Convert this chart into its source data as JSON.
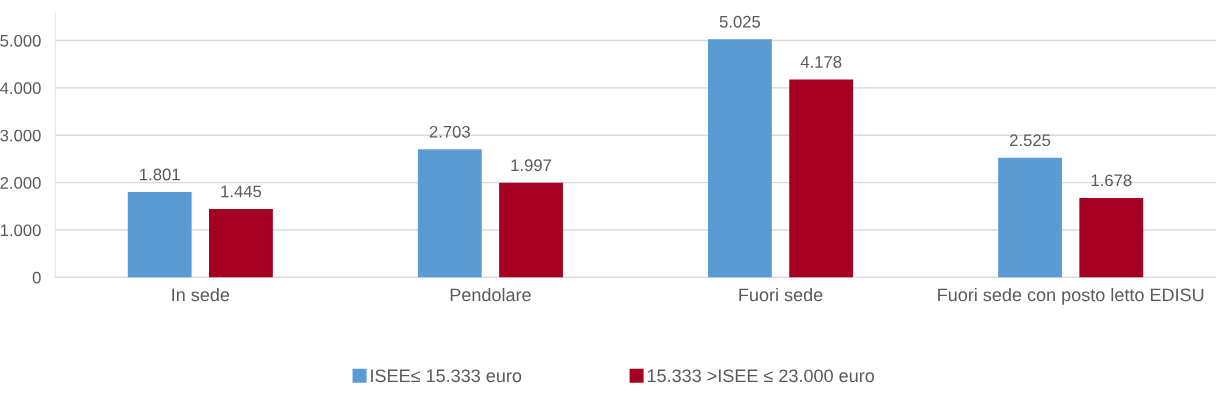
{
  "chart_data": {
    "type": "bar",
    "categories": [
      "In sede",
      "Pendolare",
      "Fuori sede",
      "Fuori sede con posto letto EDISU"
    ],
    "series": [
      {
        "name": "ISEE≤ 15.333 euro",
        "color": "#5b9bd5",
        "values": [
          1801,
          2703,
          5025,
          2525
        ],
        "value_labels": [
          "1.801",
          "2.703",
          "5.025",
          "2.525"
        ]
      },
      {
        "name": "15.333 >ISEE ≤ 23.000 euro",
        "color": "#a50021",
        "values": [
          1445,
          1997,
          4178,
          1678
        ],
        "value_labels": [
          "1.445",
          "1.997",
          "4.178",
          "1.678"
        ]
      }
    ],
    "ylim": [
      0,
      5600
    ],
    "yticks": [
      {
        "value": 0,
        "label": "0"
      },
      {
        "value": 1000,
        "label": "1.000"
      },
      {
        "value": 2000,
        "label": "2.000"
      },
      {
        "value": 3000,
        "label": "3.000"
      },
      {
        "value": 4000,
        "label": "4.000"
      },
      {
        "value": 5000,
        "label": "5.000"
      }
    ],
    "grid": "y",
    "legend": "bottom"
  }
}
